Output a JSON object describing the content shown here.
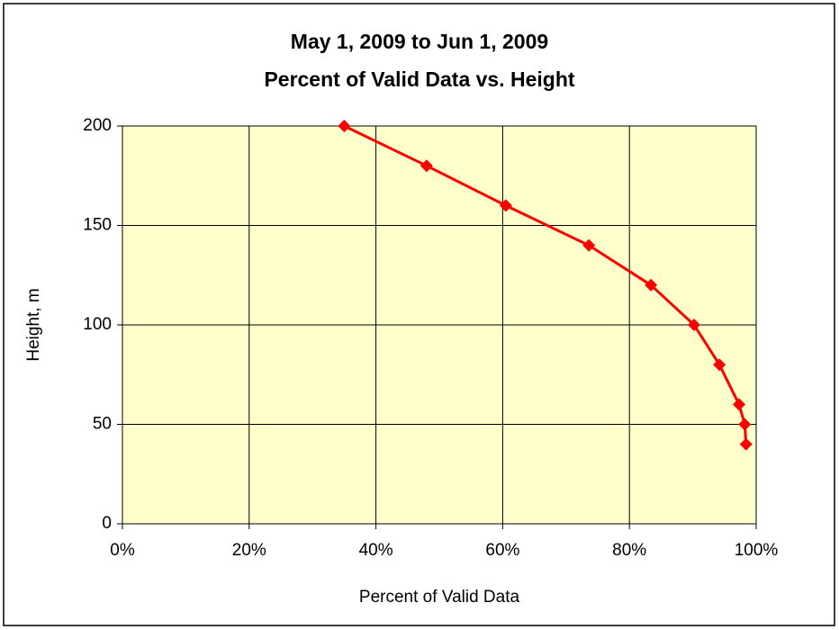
{
  "chart_data": {
    "type": "scatter",
    "title": [
      "May 1, 2009 to Jun 1, 2009",
      "Percent of Valid Data vs. Height"
    ],
    "xlabel": "Percent of Valid Data",
    "ylabel": "Height, m",
    "x": [
      35,
      48,
      60.5,
      73.6,
      83.4,
      90.2,
      94.2,
      97.3,
      98.2,
      98.4
    ],
    "series": [
      {
        "color": "#ff0000",
        "values": [
          200,
          180,
          160,
          140,
          120,
          100,
          80,
          60,
          50,
          40
        ]
      }
    ],
    "xlim": [
      0,
      100
    ],
    "xticks": [
      {
        "value": 0,
        "label": "0%"
      },
      {
        "value": 20,
        "label": "20%"
      },
      {
        "value": 40,
        "label": "40%"
      },
      {
        "value": 60,
        "label": "60%"
      },
      {
        "value": 80,
        "label": "80%"
      },
      {
        "value": 100,
        "label": "100%"
      }
    ],
    "ylim": [
      0,
      200
    ],
    "yticks": [
      0,
      50,
      100,
      150,
      200
    ],
    "grid": true,
    "plot_background": "#ffffcc"
  }
}
